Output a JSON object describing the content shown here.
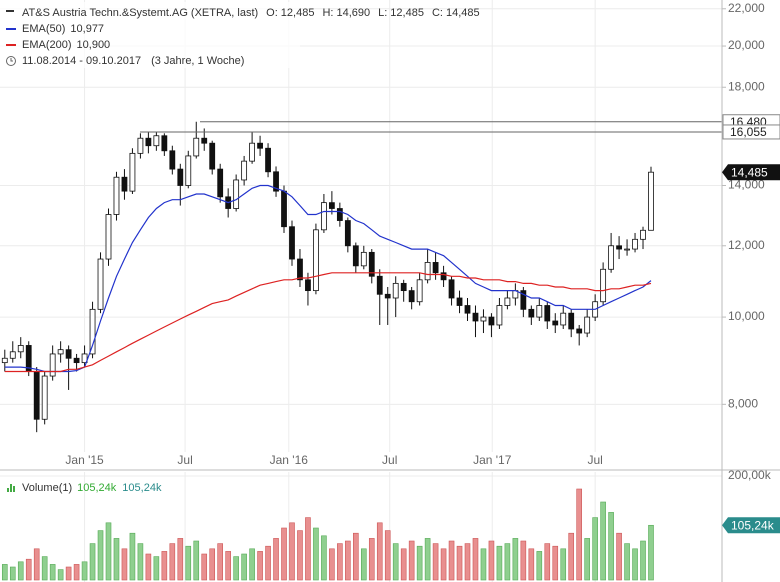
{
  "chart_data": {
    "type": "candlestick",
    "title": "AT&S Austria Techn.&Systemt.AG (XETRA, last)",
    "quote": [
      {
        "key": "O:",
        "label": "12,485"
      },
      {
        "key": "H:",
        "label": "14,690"
      },
      {
        "key": "L:",
        "label": "12,485"
      },
      {
        "key": "C:",
        "label": "14,485"
      }
    ],
    "period": "11.08.2014 - 09.10.2017",
    "period_note": "(3 Jahre, 1 Woche)",
    "log": true,
    "ylim": [
      6.85,
      22.5
    ],
    "yticks": [
      {
        "value": 8,
        "label": "8,000"
      },
      {
        "value": 10,
        "label": "10,000"
      },
      {
        "value": 12,
        "label": "12,000"
      },
      {
        "value": 14,
        "label": "14,000"
      },
      {
        "value": 18,
        "label": "18,000"
      },
      {
        "value": 20,
        "label": "20,000"
      },
      {
        "value": 22,
        "label": "22,000"
      }
    ],
    "xlim": [
      -0.6,
      89.9
    ],
    "xticks": [
      {
        "value": 10,
        "label": "Jan '15"
      },
      {
        "value": 22.6,
        "label": "Jul"
      },
      {
        "value": 35.6,
        "label": "Jan '16"
      },
      {
        "value": 48.25,
        "label": "Jul"
      },
      {
        "value": 61.1,
        "label": "Jan '17"
      },
      {
        "value": 74,
        "label": "Jul"
      }
    ],
    "grid": true,
    "last_label": "14,485",
    "levels": [
      {
        "value": 16.48,
        "label": "16,480"
      },
      {
        "value": 16.055,
        "label": "16,055"
      }
    ],
    "ohlc": [
      [
        8.9,
        9.2,
        8.7,
        9.0
      ],
      [
        9.0,
        9.4,
        8.9,
        9.15
      ],
      [
        9.15,
        9.5,
        9.0,
        9.3
      ],
      [
        9.3,
        9.4,
        8.6,
        8.7
      ],
      [
        8.7,
        8.8,
        7.45,
        7.7
      ],
      [
        7.7,
        8.7,
        7.6,
        8.6
      ],
      [
        8.6,
        9.3,
        8.5,
        9.1
      ],
      [
        9.1,
        9.4,
        8.9,
        9.2
      ],
      [
        9.2,
        9.3,
        8.3,
        9.0
      ],
      [
        9.0,
        9.1,
        8.7,
        8.9
      ],
      [
        8.9,
        9.3,
        8.8,
        9.1
      ],
      [
        9.1,
        10.4,
        9.0,
        10.2
      ],
      [
        10.2,
        11.8,
        10.1,
        11.6
      ],
      [
        11.6,
        13.2,
        11.4,
        13.0
      ],
      [
        13.0,
        14.5,
        12.8,
        14.3
      ],
      [
        14.3,
        14.6,
        13.5,
        13.8
      ],
      [
        13.8,
        15.4,
        13.7,
        15.2
      ],
      [
        15.2,
        16.0,
        15.0,
        15.8
      ],
      [
        15.8,
        16.05,
        15.2,
        15.5
      ],
      [
        15.5,
        16.05,
        15.3,
        15.9
      ],
      [
        15.9,
        16.0,
        15.1,
        15.3
      ],
      [
        15.3,
        15.5,
        14.4,
        14.6
      ],
      [
        14.6,
        14.8,
        13.3,
        14.0
      ],
      [
        14.0,
        15.3,
        13.9,
        15.1
      ],
      [
        15.1,
        16.48,
        15.0,
        15.8
      ],
      [
        15.8,
        16.2,
        15.3,
        15.6
      ],
      [
        15.6,
        15.7,
        14.4,
        14.6
      ],
      [
        14.6,
        14.8,
        13.4,
        13.6
      ],
      [
        13.6,
        13.9,
        12.9,
        13.2
      ],
      [
        13.2,
        14.4,
        13.1,
        14.2
      ],
      [
        14.2,
        15.1,
        14.0,
        14.9
      ],
      [
        14.9,
        16.05,
        14.8,
        15.6
      ],
      [
        15.6,
        15.9,
        15.1,
        15.4
      ],
      [
        15.4,
        15.6,
        14.3,
        14.5
      ],
      [
        14.5,
        14.7,
        13.6,
        13.8
      ],
      [
        13.8,
        14.0,
        12.4,
        12.6
      ],
      [
        12.6,
        12.8,
        11.4,
        11.6
      ],
      [
        11.6,
        11.9,
        10.8,
        11.0
      ],
      [
        11.0,
        11.2,
        10.3,
        10.7
      ],
      [
        10.7,
        12.7,
        10.6,
        12.5
      ],
      [
        12.5,
        13.7,
        12.4,
        13.4
      ],
      [
        13.4,
        13.8,
        13.0,
        13.2
      ],
      [
        13.2,
        13.4,
        12.6,
        12.8
      ],
      [
        12.8,
        12.9,
        11.8,
        12.0
      ],
      [
        12.0,
        12.1,
        11.2,
        11.4
      ],
      [
        11.4,
        12.0,
        11.3,
        11.8
      ],
      [
        11.8,
        11.9,
        10.9,
        11.1
      ],
      [
        11.1,
        11.3,
        9.8,
        10.6
      ],
      [
        10.6,
        10.8,
        9.8,
        10.5
      ],
      [
        10.5,
        11.1,
        10.0,
        10.9
      ],
      [
        10.9,
        11.0,
        10.4,
        10.7
      ],
      [
        10.7,
        10.8,
        10.2,
        10.4
      ],
      [
        10.4,
        11.2,
        10.3,
        11.0
      ],
      [
        11.0,
        11.9,
        10.9,
        11.5
      ],
      [
        11.5,
        11.8,
        11.0,
        11.2
      ],
      [
        11.2,
        11.4,
        10.8,
        11.0
      ],
      [
        11.0,
        11.1,
        10.3,
        10.5
      ],
      [
        10.5,
        10.7,
        10.1,
        10.3
      ],
      [
        10.3,
        10.5,
        9.9,
        10.1
      ],
      [
        10.1,
        10.3,
        9.5,
        9.9
      ],
      [
        9.9,
        10.2,
        9.6,
        10.0
      ],
      [
        10.0,
        10.1,
        9.5,
        9.8
      ],
      [
        9.8,
        10.5,
        9.7,
        10.3
      ],
      [
        10.3,
        10.7,
        10.2,
        10.5
      ],
      [
        10.5,
        10.9,
        10.3,
        10.7
      ],
      [
        10.7,
        10.8,
        10.0,
        10.2
      ],
      [
        10.2,
        10.3,
        9.8,
        10.0
      ],
      [
        10.0,
        10.5,
        9.9,
        10.3
      ],
      [
        10.3,
        10.4,
        9.7,
        9.9
      ],
      [
        9.9,
        10.1,
        9.6,
        9.8
      ],
      [
        9.8,
        10.3,
        9.7,
        10.1
      ],
      [
        10.1,
        10.2,
        9.5,
        9.7
      ],
      [
        9.7,
        9.8,
        9.3,
        9.6
      ],
      [
        9.6,
        10.2,
        9.5,
        10.0
      ],
      [
        10.0,
        10.6,
        9.9,
        10.4
      ],
      [
        10.4,
        11.5,
        10.3,
        11.3
      ],
      [
        11.3,
        12.4,
        11.2,
        12.0
      ],
      [
        12.0,
        12.3,
        11.6,
        11.9
      ],
      [
        11.9,
        12.2,
        11.7,
        11.9
      ],
      [
        11.9,
        12.4,
        11.8,
        12.2
      ],
      [
        12.2,
        12.6,
        11.9,
        12.485
      ],
      [
        12.485,
        14.69,
        12.485,
        14.485
      ]
    ],
    "ema": [
      {
        "name": "EMA(50)",
        "color": "#2233cc",
        "value_label": "10,977",
        "values": [
          8.8,
          8.8,
          8.8,
          8.78,
          8.75,
          8.7,
          8.7,
          8.7,
          8.7,
          8.72,
          8.8,
          9.3,
          9.9,
          10.5,
          11.1,
          11.6,
          12.1,
          12.5,
          12.9,
          13.2,
          13.4,
          13.5,
          13.5,
          13.6,
          13.7,
          13.7,
          13.6,
          13.5,
          13.4,
          13.5,
          13.7,
          13.9,
          14.0,
          14.0,
          13.9,
          13.8,
          13.6,
          13.3,
          13.0,
          13.0,
          13.1,
          13.1,
          13.1,
          13.0,
          12.8,
          12.7,
          12.5,
          12.3,
          12.2,
          12.1,
          12.0,
          11.9,
          11.9,
          11.9,
          11.8,
          11.7,
          11.5,
          11.3,
          11.1,
          10.9,
          10.8,
          10.7,
          10.7,
          10.7,
          10.7,
          10.6,
          10.5,
          10.5,
          10.4,
          10.3,
          10.3,
          10.2,
          10.2,
          10.2,
          10.2,
          10.3,
          10.4,
          10.5,
          10.6,
          10.7,
          10.8,
          10.977
        ]
      },
      {
        "name": "EMA(200)",
        "color": "#dd2222",
        "value_label": "10,900",
        "values": [
          8.7,
          8.7,
          8.7,
          8.7,
          8.7,
          8.7,
          8.7,
          8.7,
          8.75,
          8.75,
          8.8,
          8.85,
          8.95,
          9.05,
          9.15,
          9.25,
          9.35,
          9.45,
          9.55,
          9.65,
          9.75,
          9.85,
          9.95,
          10.05,
          10.15,
          10.25,
          10.35,
          10.4,
          10.45,
          10.55,
          10.65,
          10.75,
          10.85,
          10.9,
          10.95,
          11.0,
          11.0,
          11.05,
          11.05,
          11.1,
          11.15,
          11.2,
          11.2,
          11.2,
          11.2,
          11.2,
          11.2,
          11.2,
          11.2,
          11.2,
          11.2,
          11.2,
          11.2,
          11.15,
          11.15,
          11.15,
          11.1,
          11.1,
          11.05,
          11.05,
          11.0,
          11.0,
          11.0,
          10.95,
          10.95,
          10.9,
          10.9,
          10.85,
          10.85,
          10.8,
          10.8,
          10.75,
          10.75,
          10.75,
          10.7,
          10.7,
          10.75,
          10.75,
          10.8,
          10.85,
          10.85,
          10.9
        ]
      }
    ],
    "volume": {
      "name": "Volume(1)",
      "legend_values": [
        "105,24k",
        "105,24k"
      ],
      "label": "105,24k",
      "up_color": "#8fcf8f",
      "down_color": "#e88f8f",
      "ylim": [
        0,
        200000
      ],
      "yticks": [
        {
          "value": 200000,
          "label": "200,00k"
        }
      ],
      "values": [
        30000,
        25000,
        35000,
        40000,
        60000,
        45000,
        30000,
        20000,
        25000,
        30000,
        35000,
        70000,
        95000,
        110000,
        80000,
        60000,
        90000,
        70000,
        50000,
        45000,
        55000,
        70000,
        80000,
        65000,
        75000,
        50000,
        60000,
        70000,
        55000,
        45000,
        50000,
        60000,
        55000,
        65000,
        80000,
        100000,
        110000,
        95000,
        120000,
        100000,
        85000,
        60000,
        70000,
        75000,
        90000,
        60000,
        80000,
        110000,
        95000,
        70000,
        60000,
        75000,
        65000,
        80000,
        70000,
        60000,
        75000,
        65000,
        70000,
        80000,
        60000,
        75000,
        65000,
        70000,
        80000,
        75000,
        60000,
        55000,
        70000,
        65000,
        60000,
        90000,
        175000,
        80000,
        120000,
        150000,
        130000,
        90000,
        70000,
        60000,
        75000,
        105240
      ]
    }
  }
}
